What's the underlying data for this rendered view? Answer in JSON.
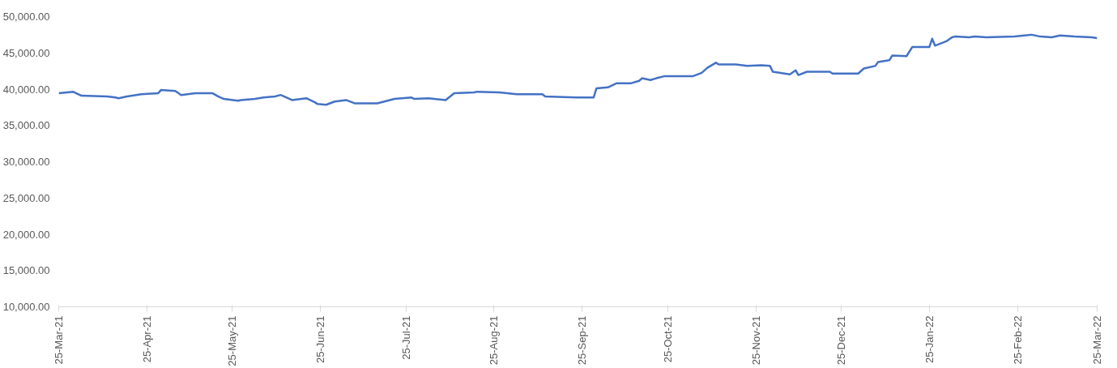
{
  "chart_data": {
    "type": "line",
    "x": [
      "2021-03-25",
      "2021-03-30",
      "2021-04-02",
      "2021-04-11",
      "2021-04-14",
      "2021-04-15",
      "2021-04-18",
      "2021-04-23",
      "2021-04-29",
      "2021-04-30",
      "2021-05-05",
      "2021-05-07",
      "2021-05-12",
      "2021-05-18",
      "2021-05-20",
      "2021-05-22",
      "2021-05-27",
      "2021-05-28",
      "2021-06-02",
      "2021-06-05",
      "2021-06-09",
      "2021-06-11",
      "2021-06-15",
      "2021-06-20",
      "2021-06-23",
      "2021-06-24",
      "2021-06-27",
      "2021-06-30",
      "2021-07-04",
      "2021-07-07",
      "2021-07-15",
      "2021-07-21",
      "2021-07-27",
      "2021-07-28",
      "2021-08-02",
      "2021-08-08",
      "2021-08-11",
      "2021-08-18",
      "2021-08-19",
      "2021-08-27",
      "2021-09-02",
      "2021-09-11",
      "2021-09-12",
      "2021-09-23",
      "2021-09-29",
      "2021-09-30",
      "2021-10-04",
      "2021-10-07",
      "2021-10-12",
      "2021-10-15",
      "2021-10-16",
      "2021-10-19",
      "2021-10-21",
      "2021-10-24",
      "2021-11-03",
      "2021-11-06",
      "2021-11-08",
      "2021-11-11",
      "2021-11-12",
      "2021-11-18",
      "2021-11-22",
      "2021-11-27",
      "2021-11-30",
      "2021-12-01",
      "2021-12-07",
      "2021-12-09",
      "2021-12-10",
      "2021-12-13",
      "2021-12-21",
      "2021-12-22",
      "2021-12-31",
      "2022-01-02",
      "2022-01-06",
      "2022-01-07",
      "2022-01-11",
      "2022-01-12",
      "2022-01-17",
      "2022-01-19",
      "2022-01-25",
      "2022-01-26",
      "2022-01-27",
      "2022-01-31",
      "2022-02-02",
      "2022-02-03",
      "2022-02-08",
      "2022-02-10",
      "2022-02-14",
      "2022-02-24",
      "2022-03-02",
      "2022-03-05",
      "2022-03-09",
      "2022-03-12",
      "2022-03-17",
      "2022-03-23",
      "2022-03-25"
    ],
    "series": [
      {
        "color": "#4472c4",
        "values": [
          39450,
          39650,
          39100,
          39000,
          38850,
          38750,
          39000,
          39300,
          39450,
          39900,
          39750,
          39200,
          39450,
          39450,
          39000,
          38650,
          38400,
          38500,
          38650,
          38850,
          39000,
          39200,
          38500,
          38750,
          38200,
          37950,
          37850,
          38300,
          38500,
          38050,
          38050,
          38650,
          38850,
          38650,
          38750,
          38500,
          39450,
          39550,
          39650,
          39550,
          39300,
          39300,
          39000,
          38850,
          38850,
          40100,
          40250,
          40800,
          40800,
          41150,
          41500,
          41250,
          41500,
          41800,
          41800,
          42250,
          42950,
          43650,
          43400,
          43400,
          43200,
          43300,
          43200,
          42400,
          42050,
          42600,
          41950,
          42400,
          42400,
          42150,
          42150,
          42850,
          43200,
          43750,
          44000,
          44650,
          44550,
          45800,
          45800,
          46950,
          46000,
          46600,
          47150,
          47250,
          47150,
          47250,
          47150,
          47250,
          47500,
          47250,
          47150,
          47400,
          47250,
          47150,
          47050
        ]
      }
    ],
    "xlim": [
      "2021-03-25",
      "2022-03-25"
    ],
    "xticks": [
      {
        "value": "2021-03-25",
        "label": "25-Mar-21"
      },
      {
        "value": "2021-04-25",
        "label": "25-Apr-21"
      },
      {
        "value": "2021-05-25",
        "label": "25-May-21"
      },
      {
        "value": "2021-06-25",
        "label": "25-Jun-21"
      },
      {
        "value": "2021-07-25",
        "label": "25-Jul-21"
      },
      {
        "value": "2021-08-25",
        "label": "25-Aug-21"
      },
      {
        "value": "2021-09-25",
        "label": "25-Sep-21"
      },
      {
        "value": "2021-10-25",
        "label": "25-Oct-21"
      },
      {
        "value": "2021-11-25",
        "label": "25-Nov-21"
      },
      {
        "value": "2021-12-25",
        "label": "25-Dec-21"
      },
      {
        "value": "2022-01-25",
        "label": "25-Jan-22"
      },
      {
        "value": "2022-02-25",
        "label": "25-Feb-22"
      },
      {
        "value": "2022-03-25",
        "label": "25-Mar-22"
      }
    ],
    "ylim": [
      10000,
      50000
    ],
    "yticks": [
      {
        "value": 10000,
        "label": "10,000.00"
      },
      {
        "value": 15000,
        "label": "15,000.00"
      },
      {
        "value": 20000,
        "label": "20,000.00"
      },
      {
        "value": 25000,
        "label": "25,000.00"
      },
      {
        "value": 30000,
        "label": "30,000.00"
      },
      {
        "value": 35000,
        "label": "35,000.00"
      },
      {
        "value": 40000,
        "label": "40,000.00"
      },
      {
        "value": 45000,
        "label": "45,000.00"
      },
      {
        "value": 50000,
        "label": "50,000.00"
      }
    ],
    "grid": false,
    "marker": "none",
    "line_style": "solid"
  }
}
